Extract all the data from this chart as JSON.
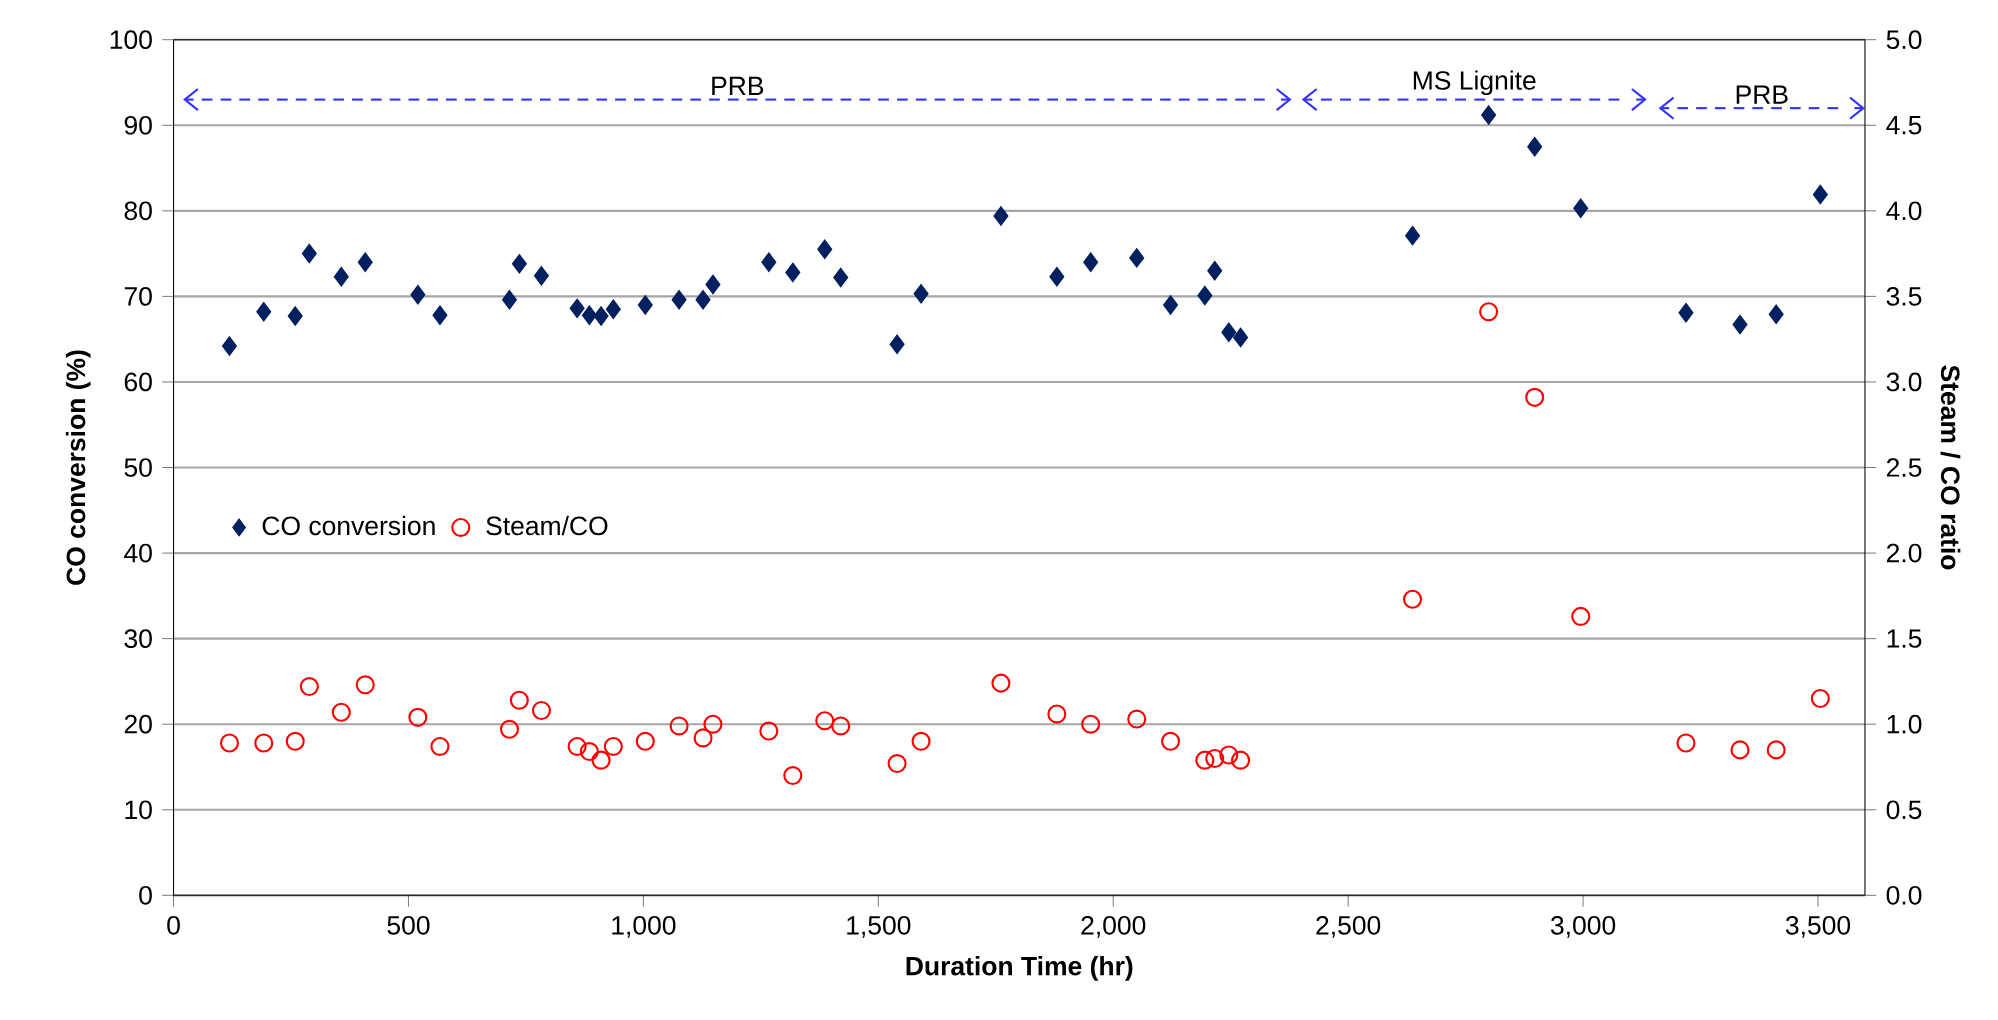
{
  "chart_data": {
    "type": "scatter",
    "xlabel": "Duration Time (hr)",
    "ylabel": "CO conversion (%)",
    "y2label": "Steam / CO ratio",
    "x": [
      119,
      192,
      259,
      289,
      357,
      408,
      520,
      567,
      715,
      736,
      783,
      859,
      885,
      910,
      936,
      1004,
      1076,
      1127,
      1148,
      1267,
      1318,
      1386,
      1420,
      1540,
      1591,
      1761,
      1880,
      1952,
      2050,
      2122,
      2195,
      2216,
      2246,
      2271,
      2637,
      2799,
      2897,
      2995,
      3219,
      3334,
      3411,
      3505
    ],
    "series": [
      {
        "name": "CO conversion",
        "color": "#002060",
        "marker": "diamond",
        "values": [
          64.2,
          68.2,
          67.7,
          75.0,
          72.3,
          74.0,
          70.2,
          67.8,
          69.6,
          73.8,
          72.4,
          68.6,
          67.8,
          67.7,
          68.5,
          69.0,
          69.6,
          69.6,
          71.4,
          74.0,
          72.8,
          75.5,
          72.2,
          64.4,
          70.3,
          79.4,
          72.3,
          74.0,
          74.5,
          69.0,
          70.1,
          73.0,
          65.8,
          65.2,
          77.1,
          91.2,
          87.5,
          80.3,
          68.1,
          66.7,
          67.9,
          81.9
        ]
      },
      {
        "name": "Steam/CO",
        "color": "#ff0000",
        "marker": "circle",
        "axis": "y2",
        "values": [
          0.89,
          0.89,
          0.9,
          1.22,
          1.07,
          1.23,
          1.04,
          0.87,
          0.97,
          1.14,
          1.08,
          0.87,
          0.84,
          0.79,
          0.87,
          0.9,
          0.99,
          0.92,
          1.0,
          0.96,
          0.7,
          1.02,
          0.99,
          0.77,
          0.9,
          1.24,
          1.06,
          1.0,
          1.03,
          0.9,
          0.79,
          0.8,
          0.82,
          0.79,
          1.73,
          3.41,
          2.91,
          1.63,
          0.89,
          0.85,
          0.85,
          1.15
        ]
      }
    ],
    "annotations": [
      "PRB",
      "MS Lignite",
      "PRB"
    ],
    "xlim": [
      0,
      3600
    ],
    "xticks": [
      0,
      500,
      {
        "value": 1000,
        "label": "1,000"
      },
      {
        "value": 1500,
        "label": "1,500"
      },
      {
        "value": 2000,
        "label": "2,000"
      },
      {
        "value": 2500,
        "label": "2,500"
      },
      {
        "value": 3000,
        "label": "3,000"
      },
      {
        "value": 3500,
        "label": "3,500"
      }
    ],
    "ylim": [
      0,
      100
    ],
    "yticks": [
      0,
      10,
      20,
      30,
      40,
      50,
      60,
      70,
      80,
      90,
      100
    ],
    "y2lim": [
      0,
      5
    ],
    "y2ticks": [
      {
        "value": 0,
        "label": "0.0"
      },
      {
        "value": 0.5,
        "label": "0.5"
      },
      {
        "value": 1,
        "label": "1.0"
      },
      {
        "value": 1.5,
        "label": "1.5"
      },
      {
        "value": 2,
        "label": "2.0"
      },
      {
        "value": 2.5,
        "label": "2.5"
      },
      {
        "value": 3,
        "label": "3.0"
      },
      {
        "value": 3.5,
        "label": "3.5"
      },
      {
        "value": 4,
        "label": "4.0"
      },
      {
        "value": 4.5,
        "label": "4.5"
      },
      {
        "value": 5,
        "label": "5.0"
      }
    ],
    "grid": "y",
    "legend": "left"
  }
}
